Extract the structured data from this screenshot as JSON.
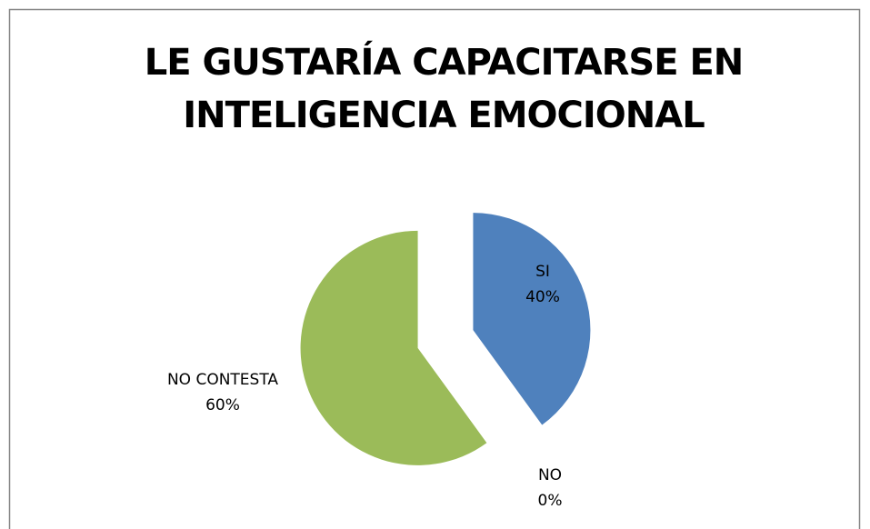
{
  "chart_data": {
    "type": "pie",
    "title": [
      "LE GUSTARÍA CAPACITARSE EN",
      "INTELIGENCIA EMOCIONAL"
    ],
    "categories": [
      "SI",
      "NO",
      "NO CONTESTA"
    ],
    "values": [
      40,
      0,
      60
    ],
    "value_labels": [
      "40%",
      "0%",
      "60%"
    ],
    "colors": [
      "#4f81bd",
      "#c0504d",
      "#9bbb59"
    ]
  }
}
